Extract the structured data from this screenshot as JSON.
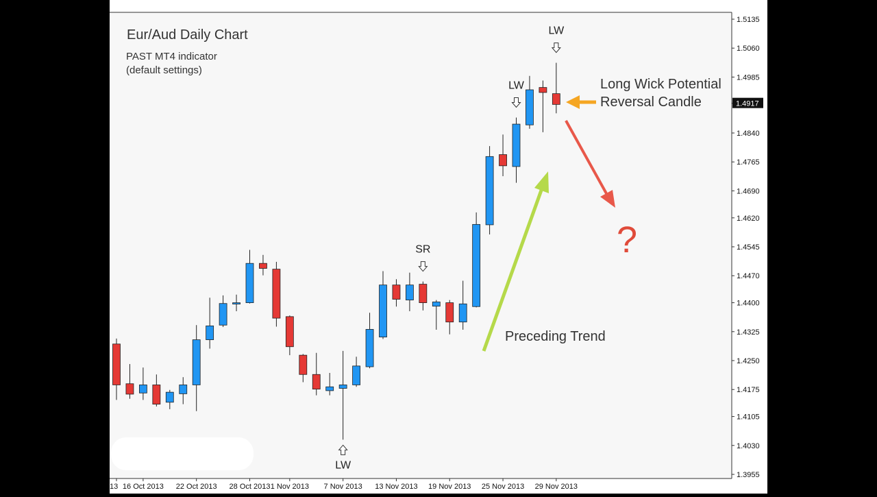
{
  "chart_data": {
    "type": "candlestick",
    "title": "Eur/Aud Daily Chart",
    "subtitle_lines": [
      "PAST MT4 indicator",
      "(default settings)"
    ],
    "xlabel": "",
    "ylabel": "",
    "ylim": [
      1.3955,
      1.5135
    ],
    "grid": false,
    "y_ticks": [
      "1.5135",
      "1.5060",
      "1.4985",
      "1.4917",
      "1.4840",
      "1.4765",
      "1.4690",
      "1.4620",
      "1.4545",
      "1.4470",
      "1.4400",
      "1.4325",
      "1.4250",
      "1.4175",
      "1.4105",
      "1.4030",
      "1.3955"
    ],
    "x_tick_labels": [
      {
        "i": 0,
        "label": "13"
      },
      {
        "i": 2,
        "label": "16 Oct 2013"
      },
      {
        "i": 6,
        "label": "22 Oct 2013"
      },
      {
        "i": 10,
        "label": "28 Oct 2013"
      },
      {
        "i": 13,
        "label": "1 Nov 2013"
      },
      {
        "i": 17,
        "label": "7 Nov 2013"
      },
      {
        "i": 21,
        "label": "13 Nov 2013"
      },
      {
        "i": 25,
        "label": "19 Nov 2013"
      },
      {
        "i": 29,
        "label": "25 Nov 2013"
      },
      {
        "i": 33,
        "label": "29 Nov 2013"
      }
    ],
    "current_price": "1.4917",
    "colors": {
      "up": "#2196F3",
      "down": "#E53935",
      "wick": "#222222",
      "background": "#F7F7F7"
    },
    "candles": [
      {
        "open": 1.4293,
        "high": 1.4307,
        "low": 1.4148,
        "close": 1.4187
      },
      {
        "open": 1.419,
        "high": 1.4241,
        "low": 1.4151,
        "close": 1.4163
      },
      {
        "open": 1.4166,
        "high": 1.4232,
        "low": 1.4148,
        "close": 1.4187
      },
      {
        "open": 1.4187,
        "high": 1.4214,
        "low": 1.4131,
        "close": 1.4137
      },
      {
        "open": 1.4142,
        "high": 1.4174,
        "low": 1.4124,
        "close": 1.4168
      },
      {
        "open": 1.4164,
        "high": 1.4207,
        "low": 1.4137,
        "close": 1.4187
      },
      {
        "open": 1.4187,
        "high": 1.4342,
        "low": 1.4119,
        "close": 1.4304
      },
      {
        "open": 1.4304,
        "high": 1.4413,
        "low": 1.4281,
        "close": 1.434
      },
      {
        "open": 1.4342,
        "high": 1.4419,
        "low": 1.4337,
        "close": 1.4398
      },
      {
        "open": 1.44,
        "high": 1.4421,
        "low": 1.4378,
        "close": 1.44
      },
      {
        "open": 1.44,
        "high": 1.4537,
        "low": 1.4398,
        "close": 1.4502
      },
      {
        "open": 1.4502,
        "high": 1.4524,
        "low": 1.4471,
        "close": 1.4489
      },
      {
        "open": 1.4487,
        "high": 1.4506,
        "low": 1.4338,
        "close": 1.436
      },
      {
        "open": 1.4364,
        "high": 1.4367,
        "low": 1.4264,
        "close": 1.4286
      },
      {
        "open": 1.4264,
        "high": 1.4267,
        "low": 1.4194,
        "close": 1.4214
      },
      {
        "open": 1.4214,
        "high": 1.427,
        "low": 1.416,
        "close": 1.4176
      },
      {
        "open": 1.4172,
        "high": 1.4218,
        "low": 1.416,
        "close": 1.4182
      },
      {
        "open": 1.4178,
        "high": 1.4275,
        "low": 1.4045,
        "close": 1.4187
      },
      {
        "open": 1.4187,
        "high": 1.426,
        "low": 1.4182,
        "close": 1.4236
      },
      {
        "open": 1.4234,
        "high": 1.4374,
        "low": 1.423,
        "close": 1.4331
      },
      {
        "open": 1.4311,
        "high": 1.4482,
        "low": 1.4306,
        "close": 1.4446
      },
      {
        "open": 1.4446,
        "high": 1.4461,
        "low": 1.439,
        "close": 1.4409
      },
      {
        "open": 1.4407,
        "high": 1.4478,
        "low": 1.4378,
        "close": 1.4446
      },
      {
        "open": 1.4448,
        "high": 1.4455,
        "low": 1.438,
        "close": 1.44
      },
      {
        "open": 1.4391,
        "high": 1.4407,
        "low": 1.433,
        "close": 1.4402
      },
      {
        "open": 1.44,
        "high": 1.4407,
        "low": 1.4318,
        "close": 1.435
      },
      {
        "open": 1.435,
        "high": 1.4457,
        "low": 1.433,
        "close": 1.4397
      },
      {
        "open": 1.439,
        "high": 1.4634,
        "low": 1.4388,
        "close": 1.4603
      },
      {
        "open": 1.4602,
        "high": 1.4806,
        "low": 1.4577,
        "close": 1.4779
      },
      {
        "open": 1.4784,
        "high": 1.4836,
        "low": 1.4728,
        "close": 1.4755
      },
      {
        "open": 1.4753,
        "high": 1.488,
        "low": 1.4711,
        "close": 1.4863
      },
      {
        "open": 1.4861,
        "high": 1.4988,
        "low": 1.4851,
        "close": 1.4952
      },
      {
        "open": 1.4958,
        "high": 1.4976,
        "low": 1.4842,
        "close": 1.4945
      },
      {
        "open": 1.4942,
        "high": 1.5022,
        "low": 1.4891,
        "close": 1.4914
      }
    ],
    "markers": [
      {
        "i": 17,
        "label": "LW",
        "direction": "up",
        "at": "low"
      },
      {
        "i": 23,
        "label": "SR",
        "direction": "down",
        "at": "high"
      },
      {
        "i": 30,
        "label": "LW",
        "direction": "down",
        "at": "high"
      },
      {
        "i": 33,
        "label": "LW",
        "direction": "down",
        "at": "high"
      }
    ]
  },
  "annotations": {
    "reversal_line1": "Long Wick Potential",
    "reversal_line2": "Reversal Candle",
    "trend_label": "Preceding Trend",
    "question_mark": "?"
  }
}
